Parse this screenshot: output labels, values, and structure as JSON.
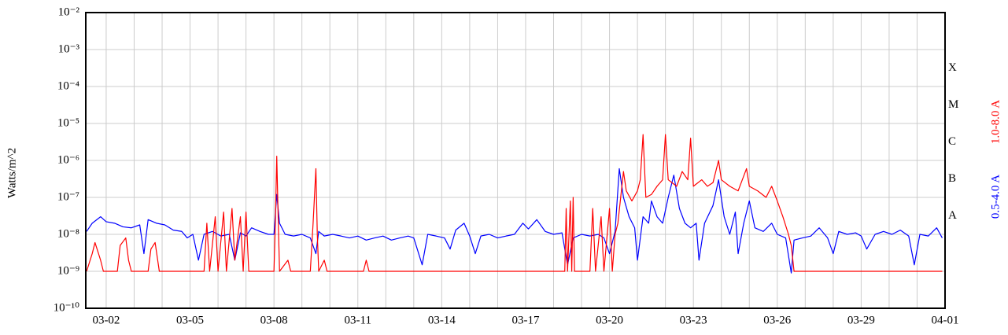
{
  "chart_data": {
    "type": "line",
    "ylabel": "Watts/m^2",
    "log_y": true,
    "grid": true,
    "ylim": [
      1e-10,
      0.01
    ],
    "yticks": [
      {
        "value": 1e-10,
        "label": "10⁻¹⁰"
      },
      {
        "value": 1e-09,
        "label": "10⁻⁹"
      },
      {
        "value": 1e-08,
        "label": "10⁻⁸"
      },
      {
        "value": 1e-07,
        "label": "10⁻⁷"
      },
      {
        "value": 1e-06,
        "label": "10⁻⁶"
      },
      {
        "value": 1e-05,
        "label": "10⁻⁵"
      },
      {
        "value": 0.0001,
        "label": "10⁻⁴"
      },
      {
        "value": 0.001,
        "label": "10⁻³"
      },
      {
        "value": 0.01,
        "label": "10⁻²"
      }
    ],
    "xlim": [
      1.27,
      32
    ],
    "xticks": [
      {
        "value": 2,
        "label": "03-02"
      },
      {
        "value": 5,
        "label": "03-05"
      },
      {
        "value": 8,
        "label": "03-08"
      },
      {
        "value": 11,
        "label": "03-11"
      },
      {
        "value": 14,
        "label": "03-14"
      },
      {
        "value": 17,
        "label": "03-17"
      },
      {
        "value": 20,
        "label": "03-20"
      },
      {
        "value": 23,
        "label": "03-23"
      },
      {
        "value": 26,
        "label": "03-26"
      },
      {
        "value": 29,
        "label": "03-29"
      },
      {
        "value": 32,
        "label": "04-01"
      }
    ],
    "xminor": [
      3,
      4,
      6,
      7,
      9,
      10,
      12,
      13,
      15,
      16,
      18,
      19,
      21,
      22,
      24,
      25,
      27,
      28,
      30,
      31
    ],
    "class_labels": [
      {
        "label": "X",
        "band": [
          0.0001,
          0.001
        ]
      },
      {
        "label": "M",
        "band": [
          1e-05,
          0.0001
        ]
      },
      {
        "label": "C",
        "band": [
          1e-06,
          1e-05
        ]
      },
      {
        "label": "B",
        "band": [
          1e-07,
          1e-06
        ]
      },
      {
        "label": "A",
        "band": [
          1e-08,
          1e-07
        ]
      }
    ],
    "series": [
      {
        "name": "0.5-4.0 A",
        "color": "#0000ff",
        "x": [
          1.3,
          1.5,
          1.8,
          2.0,
          2.3,
          2.6,
          2.9,
          3.2,
          3.35,
          3.5,
          3.8,
          4.1,
          4.4,
          4.7,
          4.9,
          5.1,
          5.3,
          5.5,
          5.8,
          6.1,
          6.4,
          6.6,
          6.8,
          7.0,
          7.2,
          7.5,
          7.8,
          8.0,
          8.1,
          8.2,
          8.4,
          8.7,
          9.0,
          9.3,
          9.5,
          9.6,
          9.8,
          10.1,
          10.4,
          10.7,
          11.0,
          11.3,
          11.6,
          11.9,
          12.2,
          12.5,
          12.8,
          13.0,
          13.3,
          13.5,
          13.8,
          14.1,
          14.3,
          14.5,
          14.8,
          15.0,
          15.2,
          15.4,
          15.7,
          16.0,
          16.3,
          16.6,
          16.9,
          17.1,
          17.4,
          17.7,
          18.0,
          18.3,
          18.5,
          18.7,
          19.0,
          19.3,
          19.6,
          19.8,
          20.0,
          20.2,
          20.35,
          20.5,
          20.7,
          20.9,
          21.0,
          21.2,
          21.4,
          21.5,
          21.7,
          21.9,
          22.1,
          22.3,
          22.5,
          22.7,
          22.9,
          23.1,
          23.2,
          23.4,
          23.7,
          23.9,
          24.1,
          24.3,
          24.5,
          24.6,
          24.8,
          25.0,
          25.2,
          25.5,
          25.8,
          26.0,
          26.3,
          26.5,
          26.6,
          26.9,
          27.2,
          27.5,
          27.8,
          28.0,
          28.2,
          28.5,
          28.8,
          29.0,
          29.2,
          29.5,
          29.8,
          30.1,
          30.4,
          30.7,
          30.9,
          31.1,
          31.4,
          31.7,
          31.9
        ],
        "values": [
          1.2e-08,
          2e-08,
          3e-08,
          2.2e-08,
          2e-08,
          1.6e-08,
          1.5e-08,
          1.8e-08,
          3e-09,
          2.5e-08,
          2e-08,
          1.8e-08,
          1.3e-08,
          1.2e-08,
          8e-09,
          1e-08,
          2e-09,
          1e-08,
          1.2e-08,
          9e-09,
          1e-08,
          2e-09,
          1.1e-08,
          9e-09,
          1.5e-08,
          1.2e-08,
          1e-08,
          1e-08,
          1.2e-07,
          2e-08,
          1e-08,
          9e-09,
          1e-08,
          8e-09,
          3e-09,
          1.2e-08,
          9e-09,
          1e-08,
          9e-09,
          8e-09,
          9e-09,
          7e-09,
          8e-09,
          9e-09,
          7e-09,
          8e-09,
          9e-09,
          8e-09,
          1.5e-09,
          1e-08,
          9e-09,
          8e-09,
          4e-09,
          1.3e-08,
          2e-08,
          9e-09,
          3e-09,
          9e-09,
          1e-08,
          8e-09,
          9e-09,
          1e-08,
          2e-08,
          1.4e-08,
          2.5e-08,
          1.2e-08,
          1e-08,
          1.1e-08,
          1.5e-09,
          8e-09,
          1e-08,
          9e-09,
          1e-08,
          8e-09,
          3e-09,
          1.2e-08,
          6e-07,
          1e-07,
          3e-08,
          1.5e-08,
          2e-09,
          3e-08,
          2e-08,
          8e-08,
          3e-08,
          2e-08,
          1e-07,
          4e-07,
          5e-08,
          2e-08,
          1.5e-08,
          2e-08,
          2e-09,
          2e-08,
          6e-08,
          3e-07,
          3e-08,
          1e-08,
          4e-08,
          3e-09,
          2e-08,
          8e-08,
          1.5e-08,
          1.2e-08,
          2e-08,
          1e-08,
          8e-09,
          9e-10,
          7e-09,
          8e-09,
          9e-09,
          1.5e-08,
          8e-09,
          3e-09,
          1.2e-08,
          1e-08,
          1.1e-08,
          9e-09,
          4e-09,
          1e-08,
          1.2e-08,
          1e-08,
          1.3e-08,
          9e-09,
          1.5e-09,
          1e-08,
          9e-09,
          1.5e-08,
          8e-09
        ]
      },
      {
        "name": "1.0-8.0 A",
        "color": "#ff0000",
        "x": [
          1.3,
          1.5,
          1.6,
          1.8,
          1.9,
          2.4,
          2.5,
          2.7,
          2.8,
          2.9,
          3.5,
          3.6,
          3.75,
          3.9,
          5.5,
          5.6,
          5.7,
          5.9,
          6.0,
          6.2,
          6.3,
          6.5,
          6.6,
          6.8,
          6.9,
          7.0,
          7.1,
          8.0,
          8.05,
          8.1,
          8.15,
          8.2,
          8.5,
          8.6,
          9.3,
          9.4,
          9.5,
          9.55,
          9.6,
          9.8,
          9.9,
          11.2,
          11.3,
          11.4,
          18.4,
          18.45,
          18.5,
          18.6,
          18.65,
          18.7,
          18.75,
          19.3,
          19.4,
          19.5,
          19.7,
          19.8,
          20.0,
          20.1,
          20.2,
          20.3,
          20.4,
          20.5,
          20.6,
          20.8,
          21.0,
          21.1,
          21.2,
          21.3,
          21.5,
          21.7,
          21.9,
          22.0,
          22.1,
          22.4,
          22.6,
          22.8,
          22.9,
          23.0,
          23.3,
          23.5,
          23.7,
          23.9,
          24.0,
          24.3,
          24.6,
          24.9,
          25.0,
          25.3,
          25.6,
          25.8,
          26.0,
          26.2,
          26.4,
          26.5,
          26.6,
          31.9
        ],
        "values": [
          1e-09,
          3e-09,
          6e-09,
          2e-09,
          1e-09,
          1e-09,
          5e-09,
          8e-09,
          2e-09,
          1e-09,
          1e-09,
          4e-09,
          6e-09,
          1e-09,
          1e-09,
          2e-08,
          1e-09,
          3e-08,
          1e-09,
          4e-08,
          1e-09,
          5e-08,
          2e-09,
          3e-08,
          1e-09,
          4e-08,
          1e-09,
          1e-09,
          2e-08,
          1.3e-06,
          3e-08,
          1e-09,
          2e-09,
          1e-09,
          1e-09,
          2e-08,
          6e-07,
          1e-08,
          1e-09,
          2e-09,
          1e-09,
          1e-09,
          2e-09,
          1e-09,
          1e-09,
          5e-08,
          1e-09,
          8e-08,
          1e-09,
          1e-07,
          1e-09,
          1e-09,
          5e-08,
          1e-09,
          3e-08,
          1e-09,
          5e-08,
          1e-09,
          1e-08,
          2e-08,
          1e-07,
          5e-07,
          1.5e-07,
          8e-08,
          1.5e-07,
          3e-07,
          5e-06,
          1e-07,
          1.2e-07,
          2e-07,
          3e-07,
          5e-06,
          3e-07,
          2e-07,
          5e-07,
          3e-07,
          4e-06,
          2e-07,
          3e-07,
          2e-07,
          2.5e-07,
          1e-06,
          3e-07,
          2e-07,
          1.5e-07,
          6e-07,
          2e-07,
          1.5e-07,
          1e-07,
          2e-07,
          8e-08,
          3e-08,
          1e-08,
          5e-09,
          1e-09,
          1e-09
        ]
      }
    ]
  }
}
